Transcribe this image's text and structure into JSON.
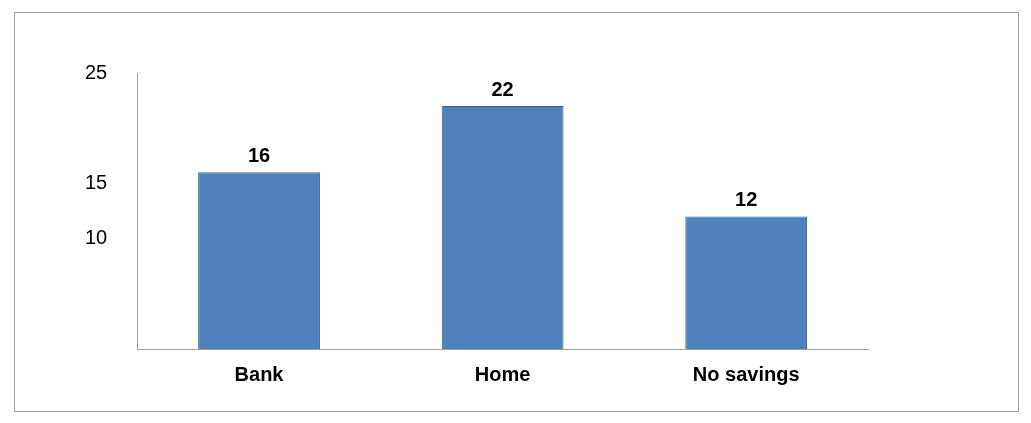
{
  "chart_data": {
    "type": "bar",
    "categories": [
      "Bank",
      "Home",
      "No savings"
    ],
    "values": [
      16,
      22,
      12
    ],
    "color": "#4f81bd",
    "ylim": [
      0,
      25
    ],
    "yticks": [
      10,
      15,
      25
    ],
    "data_labels": true,
    "grid": false,
    "legend": false
  }
}
